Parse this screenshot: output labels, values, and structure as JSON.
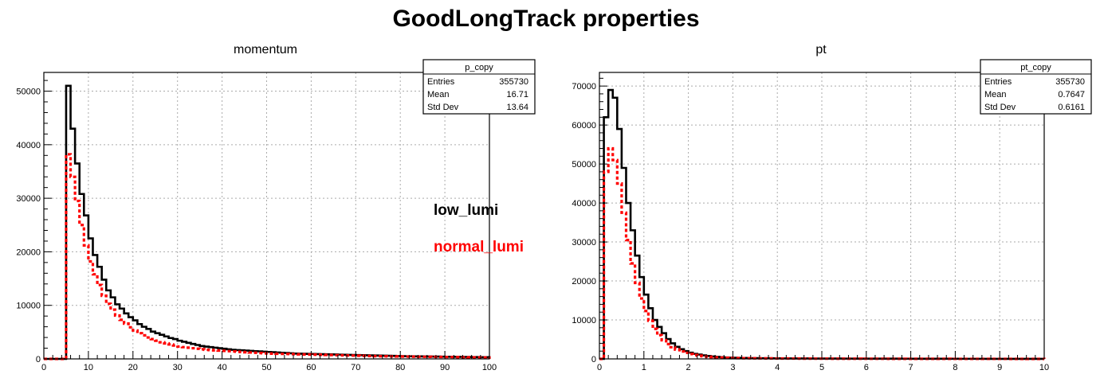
{
  "title": "GoodLongTrack properties",
  "legend": [
    {
      "label": "low_lumi",
      "color": "#000000"
    },
    {
      "label": "normal_lumi",
      "color": "#ff0000"
    }
  ],
  "chart_data": [
    {
      "type": "histogram",
      "title": "momentum",
      "stats": {
        "name": "p_copy",
        "rows": [
          {
            "label": "Entries",
            "value": "355730"
          },
          {
            "label": "Mean",
            "value": "16.71"
          },
          {
            "label": "Std Dev",
            "value": "13.64"
          }
        ]
      },
      "xlim": [
        0,
        100
      ],
      "ylim": [
        0,
        53500
      ],
      "x_ticks": [
        "0",
        "10",
        "20",
        "30",
        "40",
        "50",
        "60",
        "70",
        "80",
        "90",
        "100"
      ],
      "y_ticks": [
        0,
        10000,
        20000,
        30000,
        40000,
        50000
      ],
      "y_tick_labels": [
        "0",
        "10000",
        "20000",
        "30000",
        "40000",
        "50000"
      ],
      "grid": true,
      "bin_edges_range": [
        0,
        100
      ],
      "series": [
        {
          "name": "low_lumi",
          "color": "#000000",
          "style": "solid",
          "values": [
            0,
            0,
            0,
            0,
            0,
            51000,
            43000,
            36500,
            30800,
            26800,
            22500,
            19400,
            17200,
            14800,
            12800,
            11500,
            10200,
            9400,
            8500,
            7800,
            7200,
            6500,
            6000,
            5600,
            5100,
            4800,
            4500,
            4200,
            3900,
            3700,
            3400,
            3200,
            3000,
            2800,
            2600,
            2400,
            2300,
            2200,
            2100,
            2000,
            1900,
            1800,
            1700,
            1650,
            1600,
            1550,
            1500,
            1450,
            1400,
            1350,
            1300,
            1250,
            1200,
            1150,
            1100,
            1050,
            1000,
            980,
            960,
            940,
            920,
            900,
            880,
            860,
            840,
            820,
            800,
            780,
            760,
            740,
            720,
            700,
            680,
            660,
            640,
            620,
            600,
            580,
            560,
            540,
            520,
            500,
            490,
            480,
            470,
            460,
            450,
            440,
            430,
            420,
            410,
            400,
            390,
            380,
            370,
            360,
            350,
            340,
            330,
            320
          ]
        },
        {
          "name": "normal_lumi",
          "color": "#ff0000",
          "style": "dashed",
          "values": [
            0,
            0,
            0,
            0,
            0,
            38200,
            34000,
            29500,
            25000,
            21200,
            18200,
            15800,
            13800,
            11800,
            10300,
            9200,
            8100,
            7300,
            6600,
            5900,
            5300,
            4800,
            4400,
            4000,
            3700,
            3400,
            3100,
            2900,
            2700,
            2500,
            2300,
            2200,
            2100,
            2000,
            1900,
            1800,
            1700,
            1650,
            1600,
            1550,
            1500,
            1450,
            1400,
            1350,
            1300,
            1250,
            1200,
            1150,
            1100,
            1050,
            1000,
            980,
            960,
            940,
            920,
            900,
            880,
            860,
            840,
            820,
            800,
            780,
            760,
            740,
            720,
            700,
            680,
            660,
            640,
            620,
            600,
            580,
            560,
            540,
            520,
            500,
            490,
            480,
            470,
            460,
            450,
            440,
            430,
            420,
            410,
            400,
            390,
            380,
            370,
            360,
            350,
            340,
            330,
            320,
            310,
            300,
            290,
            280,
            270,
            260
          ]
        }
      ]
    },
    {
      "type": "histogram",
      "title": "pt",
      "stats": {
        "name": "pt_copy",
        "rows": [
          {
            "label": "Entries",
            "value": "355730"
          },
          {
            "label": "Mean",
            "value": "0.7647"
          },
          {
            "label": "Std Dev",
            "value": "0.6161"
          }
        ]
      },
      "xlim": [
        0,
        10
      ],
      "ylim": [
        0,
        73500
      ],
      "x_ticks": [
        "0",
        "1",
        "2",
        "3",
        "4",
        "5",
        "6",
        "7",
        "8",
        "9",
        "10"
      ],
      "y_ticks": [
        0,
        10000,
        20000,
        30000,
        40000,
        50000,
        60000,
        70000
      ],
      "y_tick_labels": [
        "0",
        "10000",
        "20000",
        "30000",
        "40000",
        "50000",
        "60000",
        "70000"
      ],
      "grid": true,
      "bin_edges_range": [
        0,
        10
      ],
      "series": [
        {
          "name": "low_lumi",
          "color": "#000000",
          "style": "solid",
          "values": [
            0,
            62000,
            69000,
            67000,
            59000,
            49000,
            40000,
            33000,
            26500,
            21000,
            16500,
            13000,
            10000,
            8200,
            6600,
            5100,
            4000,
            3100,
            2500,
            2000,
            1600,
            1300,
            1100,
            900,
            750,
            620,
            520,
            440,
            380,
            330,
            290,
            260,
            240,
            220,
            200,
            190,
            180,
            170,
            160,
            150,
            140,
            130,
            125,
            120,
            115,
            110,
            105,
            100,
            95,
            90,
            88,
            86,
            84,
            82,
            80,
            78,
            76,
            74,
            72,
            70,
            68,
            66,
            64,
            62,
            60,
            58,
            56,
            54,
            52,
            50,
            48,
            46,
            44,
            42,
            40,
            38,
            36,
            34,
            32,
            30,
            29,
            28,
            27,
            26,
            25,
            24,
            23,
            22,
            21,
            20,
            19,
            18,
            17,
            16,
            15,
            14,
            13,
            12,
            11,
            10
          ]
        },
        {
          "name": "normal_lumi",
          "color": "#ff0000",
          "style": "dashed",
          "values": [
            0,
            48000,
            54000,
            51000,
            45000,
            37500,
            30500,
            24500,
            19500,
            15500,
            12300,
            9800,
            7700,
            6100,
            4800,
            3800,
            3000,
            2400,
            1900,
            1550,
            1250,
            1000,
            820,
            680,
            560,
            460,
            390,
            330,
            290,
            250,
            220,
            200,
            185,
            170,
            160,
            150,
            140,
            130,
            120,
            112,
            105,
            100,
            95,
            90,
            85,
            80,
            76,
            72,
            68,
            64,
            62,
            60,
            58,
            56,
            54,
            52,
            50,
            48,
            46,
            44,
            42,
            40,
            38,
            36,
            34,
            32,
            30,
            29,
            28,
            27,
            26,
            25,
            24,
            23,
            22,
            21,
            20,
            19,
            18,
            17,
            16,
            15,
            14,
            13,
            12,
            11,
            10,
            10,
            9,
            9,
            8,
            8,
            7,
            7,
            6,
            6,
            5,
            5,
            4,
            4
          ]
        }
      ]
    }
  ]
}
